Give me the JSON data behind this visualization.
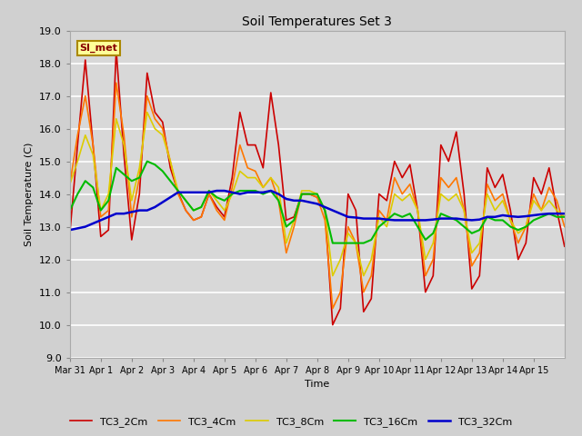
{
  "title": "Soil Temperatures Set 3",
  "xlabel": "Time",
  "ylabel": "Soil Temperature (C)",
  "ylim": [
    9.0,
    19.0
  ],
  "yticks": [
    9.0,
    10.0,
    11.0,
    12.0,
    13.0,
    14.0,
    15.0,
    16.0,
    17.0,
    18.0,
    19.0
  ],
  "annotation_text": "SI_met",
  "annotation_bg": "#ffff99",
  "annotation_border": "#aa8800",
  "fig_bg": "#d8d8d8",
  "axes_bg": "#d8d8d8",
  "grid_color": "#ffffff",
  "series": {
    "TC3_2Cm": {
      "color": "#cc0000",
      "linewidth": 1.2,
      "times_hours": [
        0,
        6,
        12,
        18,
        24,
        30,
        36,
        42,
        48,
        54,
        60,
        66,
        72,
        78,
        84,
        90,
        96,
        102,
        108,
        114,
        120,
        126,
        132,
        138,
        144,
        150,
        156,
        162,
        168,
        174,
        180,
        186,
        192,
        198,
        204,
        210,
        216,
        222,
        228,
        234,
        240,
        246,
        252,
        258,
        264,
        270,
        276,
        282,
        288,
        294,
        300,
        306,
        312,
        318,
        324,
        330,
        336,
        342,
        348,
        354,
        360,
        366,
        372,
        378,
        384
      ],
      "values": [
        12.8,
        15.5,
        18.1,
        15.5,
        12.7,
        12.9,
        18.4,
        15.2,
        12.6,
        14.0,
        17.7,
        16.5,
        16.2,
        14.8,
        14.05,
        13.5,
        13.2,
        13.3,
        14.0,
        13.6,
        13.3,
        14.5,
        16.5,
        15.5,
        15.5,
        14.8,
        17.1,
        15.5,
        13.2,
        13.3,
        14.0,
        14.0,
        13.9,
        13.5,
        10.0,
        10.5,
        14.0,
        13.5,
        10.4,
        10.8,
        14.0,
        13.8,
        15.0,
        14.5,
        14.9,
        13.5,
        11.0,
        11.5,
        15.5,
        15.0,
        15.9,
        14.0,
        11.1,
        11.5,
        14.8,
        14.2,
        14.6,
        13.5,
        12.0,
        12.5,
        14.5,
        14.0,
        14.8,
        13.5,
        12.4
      ]
    },
    "TC3_4Cm": {
      "color": "#ff7700",
      "linewidth": 1.2,
      "times_hours": [
        0,
        6,
        12,
        18,
        24,
        30,
        36,
        42,
        48,
        54,
        60,
        66,
        72,
        78,
        84,
        90,
        96,
        102,
        108,
        114,
        120,
        126,
        132,
        138,
        144,
        150,
        156,
        162,
        168,
        174,
        180,
        186,
        192,
        198,
        204,
        210,
        216,
        222,
        228,
        234,
        240,
        246,
        252,
        258,
        264,
        270,
        276,
        282,
        288,
        294,
        300,
        306,
        312,
        318,
        324,
        330,
        336,
        342,
        348,
        354,
        360,
        366,
        372,
        378,
        384
      ],
      "values": [
        14.3,
        15.8,
        17.0,
        15.5,
        13.3,
        13.5,
        17.4,
        15.8,
        13.3,
        14.5,
        17.0,
        16.3,
        16.0,
        15.0,
        14.0,
        13.5,
        13.2,
        13.3,
        14.0,
        13.5,
        13.2,
        14.2,
        15.5,
        14.8,
        14.7,
        14.2,
        14.5,
        13.8,
        12.2,
        13.0,
        14.0,
        14.0,
        13.9,
        13.2,
        10.5,
        11.0,
        13.0,
        12.5,
        11.0,
        11.5,
        13.5,
        13.2,
        14.5,
        14.0,
        14.3,
        13.5,
        11.5,
        12.0,
        14.5,
        14.2,
        14.5,
        13.5,
        11.8,
        12.2,
        14.3,
        13.8,
        14.0,
        13.2,
        12.5,
        13.0,
        14.0,
        13.5,
        14.2,
        13.8,
        13.0
      ]
    },
    "TC3_8Cm": {
      "color": "#ddcc00",
      "linewidth": 1.2,
      "times_hours": [
        0,
        6,
        12,
        18,
        24,
        30,
        36,
        42,
        48,
        54,
        60,
        66,
        72,
        78,
        84,
        90,
        96,
        102,
        108,
        114,
        120,
        126,
        132,
        138,
        144,
        150,
        156,
        162,
        168,
        174,
        180,
        186,
        192,
        198,
        204,
        210,
        216,
        222,
        228,
        234,
        240,
        246,
        252,
        258,
        264,
        270,
        276,
        282,
        288,
        294,
        300,
        306,
        312,
        318,
        324,
        330,
        336,
        342,
        348,
        354,
        360,
        366,
        372,
        378,
        384
      ],
      "values": [
        14.3,
        15.0,
        15.8,
        15.2,
        13.5,
        14.0,
        16.3,
        15.5,
        13.8,
        14.8,
        16.5,
        16.0,
        15.8,
        15.0,
        14.1,
        13.8,
        13.5,
        13.6,
        14.1,
        13.8,
        13.5,
        14.0,
        14.7,
        14.5,
        14.5,
        14.2,
        14.5,
        14.2,
        12.5,
        13.2,
        14.1,
        14.1,
        14.0,
        13.5,
        11.5,
        12.0,
        12.8,
        12.5,
        11.5,
        12.0,
        13.3,
        13.0,
        14.0,
        13.8,
        14.0,
        13.5,
        12.0,
        12.5,
        14.0,
        13.8,
        14.0,
        13.5,
        12.2,
        12.5,
        14.0,
        13.5,
        13.8,
        13.2,
        12.8,
        13.0,
        13.8,
        13.5,
        13.8,
        13.5,
        13.3
      ]
    },
    "TC3_16Cm": {
      "color": "#00bb00",
      "linewidth": 1.5,
      "times_hours": [
        0,
        6,
        12,
        18,
        24,
        30,
        36,
        42,
        48,
        54,
        60,
        66,
        72,
        78,
        84,
        90,
        96,
        102,
        108,
        114,
        120,
        126,
        132,
        138,
        144,
        150,
        156,
        162,
        168,
        174,
        180,
        186,
        192,
        198,
        204,
        210,
        216,
        222,
        228,
        234,
        240,
        246,
        252,
        258,
        264,
        270,
        276,
        282,
        288,
        294,
        300,
        306,
        312,
        318,
        324,
        330,
        336,
        342,
        348,
        354,
        360,
        366,
        372,
        378,
        384
      ],
      "values": [
        13.5,
        14.0,
        14.4,
        14.2,
        13.5,
        13.8,
        14.8,
        14.6,
        14.4,
        14.5,
        15.0,
        14.9,
        14.7,
        14.4,
        14.1,
        13.8,
        13.5,
        13.6,
        14.1,
        13.9,
        13.8,
        14.0,
        14.1,
        14.1,
        14.1,
        14.0,
        14.1,
        13.8,
        13.0,
        13.2,
        14.0,
        14.0,
        14.0,
        13.5,
        12.5,
        12.5,
        12.5,
        12.5,
        12.5,
        12.6,
        13.0,
        13.2,
        13.4,
        13.3,
        13.4,
        13.0,
        12.6,
        12.8,
        13.4,
        13.3,
        13.2,
        13.0,
        12.8,
        12.9,
        13.3,
        13.2,
        13.2,
        13.0,
        12.9,
        13.0,
        13.2,
        13.3,
        13.4,
        13.3,
        13.3
      ]
    },
    "TC3_32Cm": {
      "color": "#0000cc",
      "linewidth": 1.8,
      "times_hours": [
        0,
        6,
        12,
        18,
        24,
        30,
        36,
        42,
        48,
        54,
        60,
        66,
        72,
        78,
        84,
        90,
        96,
        102,
        108,
        114,
        120,
        126,
        132,
        138,
        144,
        150,
        156,
        162,
        168,
        174,
        180,
        186,
        192,
        198,
        204,
        210,
        216,
        222,
        228,
        234,
        240,
        246,
        252,
        258,
        264,
        270,
        276,
        282,
        288,
        294,
        300,
        306,
        312,
        318,
        324,
        330,
        336,
        342,
        348,
        354,
        360,
        366,
        372,
        378,
        384
      ],
      "values": [
        12.9,
        12.95,
        13.0,
        13.1,
        13.2,
        13.3,
        13.4,
        13.4,
        13.45,
        13.5,
        13.5,
        13.6,
        13.75,
        13.9,
        14.05,
        14.05,
        14.05,
        14.05,
        14.05,
        14.1,
        14.1,
        14.05,
        14.0,
        14.05,
        14.05,
        14.05,
        14.1,
        14.0,
        13.85,
        13.8,
        13.8,
        13.75,
        13.7,
        13.6,
        13.5,
        13.4,
        13.3,
        13.28,
        13.25,
        13.25,
        13.25,
        13.22,
        13.2,
        13.2,
        13.2,
        13.2,
        13.2,
        13.22,
        13.25,
        13.25,
        13.25,
        13.22,
        13.2,
        13.22,
        13.3,
        13.3,
        13.35,
        13.32,
        13.3,
        13.32,
        13.35,
        13.38,
        13.4,
        13.4,
        13.4
      ]
    }
  },
  "xtick_labels": [
    "Mar 31",
    "Apr 1",
    "Apr 2",
    "Apr 3",
    "Apr 4",
    "Apr 5",
    "Apr 6",
    "Apr 7",
    "Apr 8",
    "Apr 9",
    "Apr 10",
    "Apr 11",
    "Apr 12",
    "Apr 13",
    "Apr 14",
    "Apr 15"
  ],
  "xtick_hours": [
    0,
    24,
    48,
    72,
    96,
    120,
    144,
    168,
    192,
    216,
    240,
    264,
    288,
    312,
    336,
    360
  ]
}
